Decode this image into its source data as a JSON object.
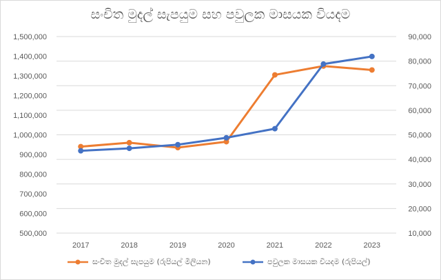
{
  "chart_data": {
    "type": "line",
    "title": "සංචිත මුදල් සැපයුම සහ පවුලක මාසයක වියදම",
    "categories": [
      "2017",
      "2018",
      "2019",
      "2020",
      "2021",
      "2022",
      "2023"
    ],
    "x": [
      "2017",
      "2018",
      "2019",
      "2020",
      "2021",
      "2022",
      "2023"
    ],
    "left_axis": {
      "ylim": [
        500000,
        1500000
      ],
      "ticks": [
        "500,000",
        "600,000",
        "700,000",
        "800,000",
        "900,000",
        "1,000,000",
        "1,100,000",
        "1,200,000",
        "1,300,000",
        "1,400,000",
        "1,500,000"
      ]
    },
    "right_axis": {
      "ylim": [
        10000,
        90000
      ],
      "ticks": [
        "10,000",
        "20,000",
        "30,000",
        "40,000",
        "50,000",
        "60,000",
        "70,000",
        "80,000",
        "90,000"
      ]
    },
    "series": [
      {
        "name": "සංචිත මුදල් සැපයුම (රුපියල් මිලියන)",
        "axis": "left",
        "color": "#ed7d31",
        "values": [
          940000,
          960000,
          935000,
          965000,
          1305000,
          1350000,
          1330000
        ]
      },
      {
        "name": "පවුලක මාසයක වියදම (රුපියල්)",
        "axis": "right",
        "color": "#4472c4",
        "values": [
          43500,
          44500,
          46000,
          48800,
          52500,
          78800,
          81900
        ]
      }
    ],
    "grid": true,
    "legend_position": "bottom"
  }
}
